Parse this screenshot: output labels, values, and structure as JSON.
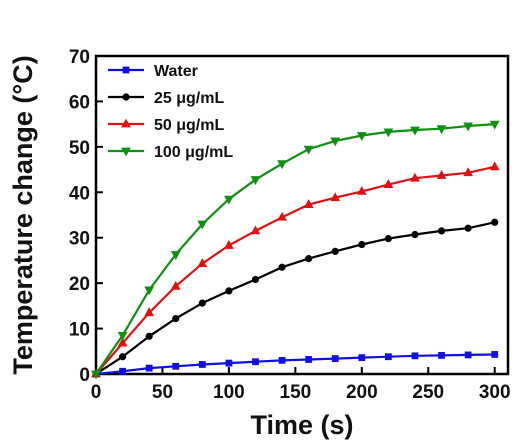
{
  "chart_data": {
    "type": "line",
    "xlabel": "Time (s)",
    "ylabel": "Temperature change (°C)",
    "xlim": [
      0,
      310
    ],
    "ylim": [
      0,
      70
    ],
    "xticks": [
      0,
      50,
      100,
      150,
      200,
      250,
      300
    ],
    "yticks": [
      0,
      10,
      20,
      30,
      40,
      50,
      60,
      70
    ],
    "grid": false,
    "legend_position": "top-left",
    "x": [
      0,
      20,
      40,
      60,
      80,
      100,
      120,
      140,
      160,
      180,
      200,
      220,
      240,
      260,
      280,
      300
    ],
    "series": [
      {
        "name": "Water",
        "color": "#1010e0",
        "marker": "square",
        "values": [
          0,
          0.6,
          1.3,
          1.7,
          2.1,
          2.4,
          2.7,
          3.0,
          3.2,
          3.4,
          3.6,
          3.8,
          4.0,
          4.1,
          4.2,
          4.3
        ]
      },
      {
        "name": "25 μg/mL",
        "color": "#000000",
        "marker": "circle",
        "values": [
          0,
          3.8,
          8.3,
          12.2,
          15.6,
          18.3,
          20.8,
          23.5,
          25.4,
          27.0,
          28.5,
          29.8,
          30.7,
          31.5,
          32.1,
          33.4
        ]
      },
      {
        "name": "50 μg/mL",
        "color": "#e01010",
        "marker": "triangle-up",
        "values": [
          0,
          6.8,
          13.5,
          19.3,
          24.3,
          28.3,
          31.5,
          34.5,
          37.3,
          38.8,
          40.2,
          41.7,
          43.1,
          43.7,
          44.3,
          45.6
        ]
      },
      {
        "name": "100 μg/mL",
        "color": "#109010",
        "marker": "triangle-down",
        "values": [
          0,
          8.5,
          18.5,
          26.3,
          33.0,
          38.5,
          42.8,
          46.3,
          49.5,
          51.3,
          52.5,
          53.3,
          53.7,
          54.0,
          54.6,
          55.0
        ]
      }
    ]
  }
}
